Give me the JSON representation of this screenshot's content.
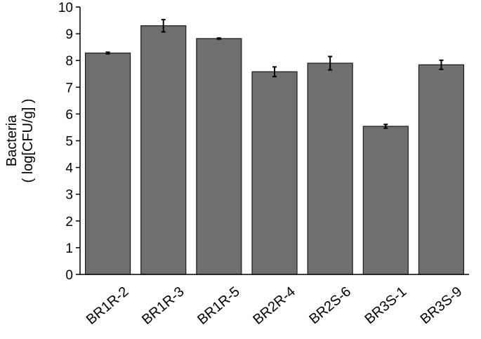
{
  "chart_data": {
    "type": "bar",
    "title": "",
    "xlabel": "",
    "ylabel_line1": "Bacteria",
    "ylabel_line2": "( log[CFU/g] )",
    "ylim": [
      0,
      10
    ],
    "yticks": [
      "0",
      "1",
      "2",
      "3",
      "4",
      "5",
      "6",
      "7",
      "8",
      "9",
      "10"
    ],
    "categories": [
      "BR1R-2",
      "BR1R-3",
      "BR1R-5",
      "BR2R-4",
      "BR2S-6",
      "BR3S-1",
      "BR3S-9"
    ],
    "values": [
      8.28,
      9.3,
      8.82,
      7.58,
      7.9,
      5.54,
      7.84
    ],
    "errors": [
      0.03,
      0.23,
      0.02,
      0.18,
      0.25,
      0.07,
      0.17
    ],
    "grid": false,
    "legend": "none",
    "bar_color": "#6f6f6f",
    "edge_color": "#1a1a1a"
  }
}
